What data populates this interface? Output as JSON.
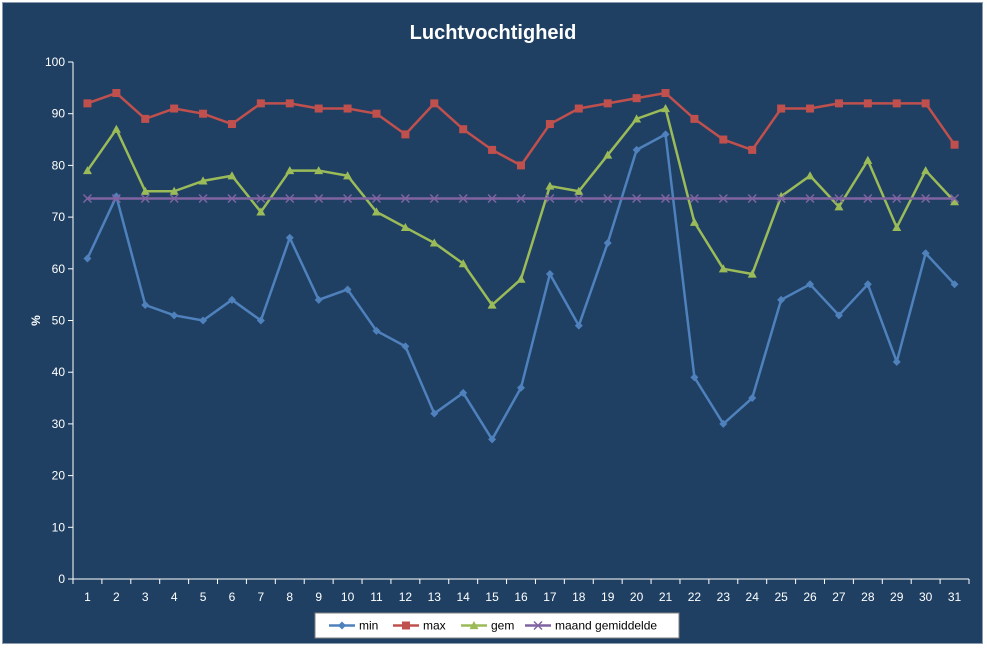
{
  "chart_data": {
    "type": "line",
    "title": "Luchtvochtigheid",
    "xlabel": "",
    "ylabel": "%",
    "ylim": [
      0,
      100
    ],
    "yticks": [
      0,
      10,
      20,
      30,
      40,
      50,
      60,
      70,
      80,
      90,
      100
    ],
    "categories": [
      "1",
      "2",
      "3",
      "4",
      "5",
      "6",
      "7",
      "8",
      "9",
      "10",
      "11",
      "12",
      "13",
      "14",
      "15",
      "16",
      "17",
      "18",
      "19",
      "20",
      "21",
      "22",
      "23",
      "24",
      "25",
      "26",
      "27",
      "28",
      "29",
      "30",
      "31"
    ],
    "grid": false,
    "legend": "bottom",
    "series": [
      {
        "name": "min",
        "color": "#4f81bd",
        "marker": "diamond",
        "values": [
          62,
          74,
          53,
          51,
          50,
          54,
          50,
          66,
          54,
          56,
          48,
          45,
          32,
          36,
          27,
          37,
          59,
          49,
          65,
          83,
          86,
          39,
          30,
          35,
          54,
          57,
          51,
          57,
          42,
          63,
          57
        ]
      },
      {
        "name": "max",
        "color": "#c0504d",
        "marker": "square",
        "values": [
          92,
          94,
          89,
          91,
          90,
          88,
          92,
          92,
          91,
          91,
          90,
          86,
          92,
          87,
          83,
          80,
          88,
          91,
          92,
          93,
          94,
          89,
          85,
          83,
          91,
          91,
          92,
          92,
          92,
          92,
          84
        ]
      },
      {
        "name": "gem",
        "color": "#9bbb59",
        "marker": "triangle",
        "values": [
          79,
          87,
          75,
          75,
          77,
          78,
          71,
          79,
          79,
          78,
          71,
          68,
          65,
          61,
          53,
          58,
          76,
          75,
          82,
          89,
          91,
          69,
          60,
          59,
          74,
          78,
          72,
          81,
          68,
          79,
          73
        ]
      },
      {
        "name": "maand gemiddelde",
        "color": "#8064a2",
        "marker": "x",
        "values": [
          73.6,
          73.6,
          73.6,
          73.6,
          73.6,
          73.6,
          73.6,
          73.6,
          73.6,
          73.6,
          73.6,
          73.6,
          73.6,
          73.6,
          73.6,
          73.6,
          73.6,
          73.6,
          73.6,
          73.6,
          73.6,
          73.6,
          73.6,
          73.6,
          73.6,
          73.6,
          73.6,
          73.6,
          73.6,
          73.6,
          73.6
        ]
      }
    ]
  }
}
